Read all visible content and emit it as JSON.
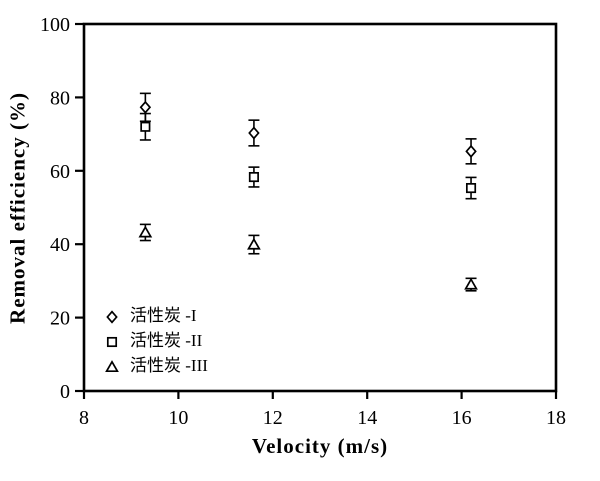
{
  "figure": {
    "background": "#ffffff",
    "stroke_color": "#000000",
    "marker_fill": "#ffffff"
  },
  "chart_data": {
    "type": "scatter",
    "title": "",
    "xlabel": "Velocity (m/s)",
    "ylabel": "Removal efficiency (%)",
    "xlim": [
      8,
      18
    ],
    "ylim": [
      0,
      100
    ],
    "xticks": [
      8,
      10,
      12,
      14,
      16,
      18
    ],
    "yticks": [
      0,
      20,
      40,
      60,
      80,
      100
    ],
    "grid": false,
    "error_bars": true,
    "legend_position": "inside-lower-left",
    "series": [
      {
        "name": "活性炭 -I",
        "marker": "diamond",
        "fill": "open",
        "points": [
          {
            "x": 9.3,
            "y": 77.3,
            "err": 3.8
          },
          {
            "x": 11.6,
            "y": 70.3,
            "err": 3.5
          },
          {
            "x": 16.2,
            "y": 65.3,
            "err": 3.4
          }
        ]
      },
      {
        "name": "活性炭 -II",
        "marker": "square",
        "fill": "open",
        "points": [
          {
            "x": 9.3,
            "y": 72.0,
            "err": 3.6
          },
          {
            "x": 11.6,
            "y": 58.3,
            "err": 2.7
          },
          {
            "x": 16.2,
            "y": 55.3,
            "err": 2.9
          }
        ]
      },
      {
        "name": "活性炭 -III",
        "marker": "triangle",
        "fill": "open",
        "points": [
          {
            "x": 9.3,
            "y": 43.2,
            "err": 2.2
          },
          {
            "x": 11.6,
            "y": 39.9,
            "err": 2.5
          },
          {
            "x": 16.2,
            "y": 29.0,
            "err": 1.7
          }
        ]
      }
    ]
  }
}
